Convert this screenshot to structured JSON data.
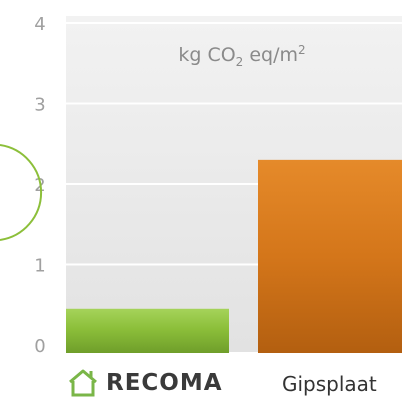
{
  "chart_data": {
    "type": "bar",
    "title": "kg CO",
    "title_sub": "2",
    "title_rest": " eq/m",
    "title_sup": "2",
    "ylim": [
      0,
      4
    ],
    "ticks": [
      "0",
      "1",
      "2",
      "3",
      "4"
    ],
    "categories": [
      "RECOMA",
      "Gipsplaat"
    ],
    "values": [
      0.45,
      2.3
    ],
    "colors": [
      "#8cbf3a",
      "#d4761a"
    ],
    "grid": true
  },
  "brand": {
    "name": "RECOMA",
    "icon": "house-icon",
    "color": "#7ab648"
  }
}
